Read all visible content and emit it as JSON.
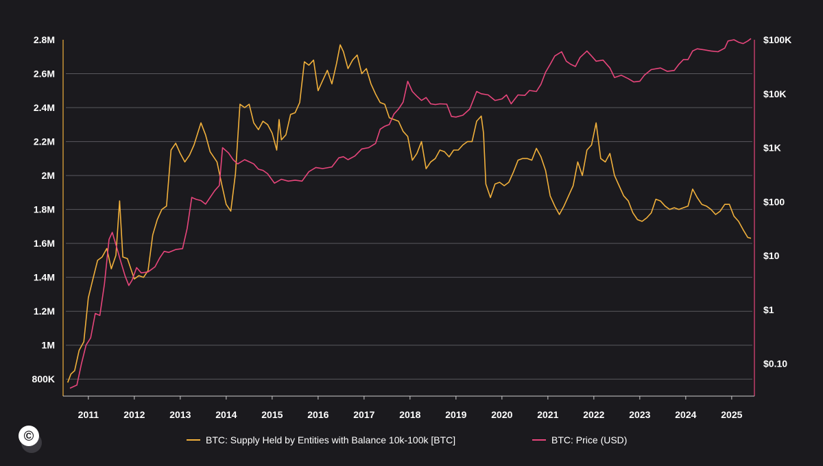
{
  "colors": {
    "background": "#1b1a1e",
    "supply_series": "#f2b13c",
    "price_series": "#e8467c",
    "gridline": "#5a595e",
    "text": "#ffffff"
  },
  "logo": {
    "glyph": "©",
    "icon": "copyright-logo-icon"
  },
  "chart_data": {
    "type": "line",
    "grid": true,
    "legend_placement": "bottom",
    "x_axis": {
      "ticks": [
        "2011",
        "2012",
        "2013",
        "2014",
        "2015",
        "2016",
        "2017",
        "2018",
        "2019",
        "2020",
        "2021",
        "2022",
        "2023",
        "2024",
        "2025"
      ],
      "range": [
        2010.45,
        2025.45
      ]
    },
    "y_left": {
      "ticks": [
        800000,
        1000000,
        1200000,
        1400000,
        1600000,
        1800000,
        2000000,
        2200000,
        2400000,
        2600000,
        2800000
      ],
      "tick_labels": [
        "800K",
        "1M",
        "1.2M",
        "1.4M",
        "1.6M",
        "1.8M",
        "2M",
        "2.2M",
        "2.4M",
        "2.6M",
        "2.8M"
      ],
      "range": [
        700000,
        2800000
      ]
    },
    "y_right": {
      "scale": "log",
      "ticks": [
        0.1,
        1,
        10,
        100,
        1000,
        10000,
        100000
      ],
      "tick_labels": [
        "$0.10",
        "$1",
        "$10",
        "$100",
        "$1K",
        "$10K",
        "$100K"
      ],
      "range": [
        0.025,
        100000
      ]
    },
    "series": [
      {
        "name": "BTC: Supply Held by Entities with Balance 10k-100k [BTC]",
        "axis": "left",
        "points": [
          [
            2010.55,
            780000
          ],
          [
            2010.62,
            830000
          ],
          [
            2010.7,
            850000
          ],
          [
            2010.8,
            970000
          ],
          [
            2010.9,
            1020000
          ],
          [
            2011.0,
            1280000
          ],
          [
            2011.1,
            1390000
          ],
          [
            2011.2,
            1500000
          ],
          [
            2011.3,
            1520000
          ],
          [
            2011.4,
            1570000
          ],
          [
            2011.5,
            1450000
          ],
          [
            2011.6,
            1530000
          ],
          [
            2011.68,
            1850000
          ],
          [
            2011.75,
            1520000
          ],
          [
            2011.85,
            1510000
          ],
          [
            2012.0,
            1390000
          ],
          [
            2012.1,
            1410000
          ],
          [
            2012.2,
            1400000
          ],
          [
            2012.3,
            1440000
          ],
          [
            2012.4,
            1650000
          ],
          [
            2012.5,
            1740000
          ],
          [
            2012.6,
            1800000
          ],
          [
            2012.7,
            1820000
          ],
          [
            2012.8,
            2150000
          ],
          [
            2012.9,
            2190000
          ],
          [
            2013.0,
            2130000
          ],
          [
            2013.1,
            2080000
          ],
          [
            2013.2,
            2120000
          ],
          [
            2013.3,
            2180000
          ],
          [
            2013.45,
            2310000
          ],
          [
            2013.55,
            2240000
          ],
          [
            2013.65,
            2140000
          ],
          [
            2013.8,
            2080000
          ],
          [
            2013.9,
            1950000
          ],
          [
            2014.0,
            1830000
          ],
          [
            2014.1,
            1790000
          ],
          [
            2014.2,
            2010000
          ],
          [
            2014.3,
            2420000
          ],
          [
            2014.4,
            2400000
          ],
          [
            2014.5,
            2420000
          ],
          [
            2014.6,
            2310000
          ],
          [
            2014.7,
            2270000
          ],
          [
            2014.8,
            2320000
          ],
          [
            2014.9,
            2300000
          ],
          [
            2015.0,
            2250000
          ],
          [
            2015.1,
            2150000
          ],
          [
            2015.15,
            2330000
          ],
          [
            2015.2,
            2210000
          ],
          [
            2015.3,
            2240000
          ],
          [
            2015.4,
            2360000
          ],
          [
            2015.5,
            2370000
          ],
          [
            2015.6,
            2430000
          ],
          [
            2015.7,
            2670000
          ],
          [
            2015.8,
            2650000
          ],
          [
            2015.9,
            2680000
          ],
          [
            2016.0,
            2500000
          ],
          [
            2016.1,
            2560000
          ],
          [
            2016.2,
            2620000
          ],
          [
            2016.3,
            2540000
          ],
          [
            2016.4,
            2660000
          ],
          [
            2016.48,
            2770000
          ],
          [
            2016.55,
            2730000
          ],
          [
            2016.65,
            2630000
          ],
          [
            2016.75,
            2680000
          ],
          [
            2016.85,
            2710000
          ],
          [
            2016.95,
            2600000
          ],
          [
            2017.05,
            2630000
          ],
          [
            2017.15,
            2540000
          ],
          [
            2017.25,
            2480000
          ],
          [
            2017.35,
            2430000
          ],
          [
            2017.45,
            2420000
          ],
          [
            2017.55,
            2340000
          ],
          [
            2017.65,
            2330000
          ],
          [
            2017.75,
            2320000
          ],
          [
            2017.85,
            2260000
          ],
          [
            2017.95,
            2230000
          ],
          [
            2018.05,
            2090000
          ],
          [
            2018.15,
            2130000
          ],
          [
            2018.25,
            2200000
          ],
          [
            2018.35,
            2040000
          ],
          [
            2018.45,
            2080000
          ],
          [
            2018.55,
            2100000
          ],
          [
            2018.65,
            2150000
          ],
          [
            2018.75,
            2140000
          ],
          [
            2018.85,
            2110000
          ],
          [
            2018.95,
            2150000
          ],
          [
            2019.05,
            2150000
          ],
          [
            2019.15,
            2180000
          ],
          [
            2019.25,
            2200000
          ],
          [
            2019.35,
            2200000
          ],
          [
            2019.45,
            2320000
          ],
          [
            2019.55,
            2350000
          ],
          [
            2019.6,
            2250000
          ],
          [
            2019.65,
            1950000
          ],
          [
            2019.75,
            1870000
          ],
          [
            2019.85,
            1950000
          ],
          [
            2019.95,
            1960000
          ],
          [
            2020.05,
            1940000
          ],
          [
            2020.15,
            1960000
          ],
          [
            2020.25,
            2020000
          ],
          [
            2020.35,
            2090000
          ],
          [
            2020.45,
            2100000
          ],
          [
            2020.55,
            2100000
          ],
          [
            2020.65,
            2090000
          ],
          [
            2020.75,
            2160000
          ],
          [
            2020.85,
            2110000
          ],
          [
            2020.95,
            2030000
          ],
          [
            2021.05,
            1880000
          ],
          [
            2021.15,
            1820000
          ],
          [
            2021.25,
            1770000
          ],
          [
            2021.35,
            1820000
          ],
          [
            2021.45,
            1880000
          ],
          [
            2021.55,
            1940000
          ],
          [
            2021.65,
            2080000
          ],
          [
            2021.75,
            2000000
          ],
          [
            2021.85,
            2150000
          ],
          [
            2021.95,
            2180000
          ],
          [
            2022.05,
            2310000
          ],
          [
            2022.15,
            2100000
          ],
          [
            2022.25,
            2080000
          ],
          [
            2022.35,
            2130000
          ],
          [
            2022.45,
            2000000
          ],
          [
            2022.55,
            1940000
          ],
          [
            2022.65,
            1880000
          ],
          [
            2022.75,
            1850000
          ],
          [
            2022.85,
            1780000
          ],
          [
            2022.95,
            1740000
          ],
          [
            2023.05,
            1730000
          ],
          [
            2023.15,
            1750000
          ],
          [
            2023.25,
            1780000
          ],
          [
            2023.35,
            1860000
          ],
          [
            2023.45,
            1850000
          ],
          [
            2023.55,
            1820000
          ],
          [
            2023.65,
            1800000
          ],
          [
            2023.75,
            1810000
          ],
          [
            2023.85,
            1800000
          ],
          [
            2023.95,
            1810000
          ],
          [
            2024.05,
            1820000
          ],
          [
            2024.15,
            1920000
          ],
          [
            2024.25,
            1870000
          ],
          [
            2024.35,
            1830000
          ],
          [
            2024.45,
            1820000
          ],
          [
            2024.55,
            1800000
          ],
          [
            2024.65,
            1770000
          ],
          [
            2024.75,
            1790000
          ],
          [
            2024.85,
            1830000
          ],
          [
            2024.95,
            1830000
          ],
          [
            2025.05,
            1760000
          ],
          [
            2025.15,
            1730000
          ],
          [
            2025.25,
            1680000
          ],
          [
            2025.35,
            1635000
          ],
          [
            2025.42,
            1630000
          ]
        ]
      },
      {
        "name": "BTC: Price (USD)",
        "axis": "right",
        "points": [
          [
            2010.6,
            0.035
          ],
          [
            2010.75,
            0.04
          ],
          [
            2010.85,
            0.1
          ],
          [
            2010.95,
            0.22
          ],
          [
            2011.05,
            0.3
          ],
          [
            2011.15,
            0.85
          ],
          [
            2011.25,
            0.78
          ],
          [
            2011.35,
            3.0
          ],
          [
            2011.45,
            20
          ],
          [
            2011.52,
            27
          ],
          [
            2011.6,
            16
          ],
          [
            2011.7,
            8
          ],
          [
            2011.8,
            4.2
          ],
          [
            2011.88,
            2.8
          ],
          [
            2011.95,
            3.5
          ],
          [
            2012.05,
            6
          ],
          [
            2012.15,
            4.8
          ],
          [
            2012.3,
            5.0
          ],
          [
            2012.45,
            6.2
          ],
          [
            2012.55,
            9
          ],
          [
            2012.65,
            12
          ],
          [
            2012.75,
            11.5
          ],
          [
            2012.9,
            13
          ],
          [
            2013.05,
            13.5
          ],
          [
            2013.15,
            32
          ],
          [
            2013.25,
            120
          ],
          [
            2013.35,
            110
          ],
          [
            2013.45,
            105
          ],
          [
            2013.55,
            90
          ],
          [
            2013.65,
            120
          ],
          [
            2013.75,
            160
          ],
          [
            2013.85,
            200
          ],
          [
            2013.92,
            1000
          ],
          [
            2014.05,
            800
          ],
          [
            2014.15,
            600
          ],
          [
            2014.25,
            500
          ],
          [
            2014.4,
            600
          ],
          [
            2014.5,
            550
          ],
          [
            2014.6,
            500
          ],
          [
            2014.7,
            400
          ],
          [
            2014.8,
            380
          ],
          [
            2014.9,
            330
          ],
          [
            2015.05,
            220
          ],
          [
            2015.2,
            260
          ],
          [
            2015.35,
            240
          ],
          [
            2015.5,
            250
          ],
          [
            2015.65,
            240
          ],
          [
            2015.8,
            360
          ],
          [
            2015.95,
            430
          ],
          [
            2016.1,
            410
          ],
          [
            2016.3,
            440
          ],
          [
            2016.45,
            650
          ],
          [
            2016.55,
            680
          ],
          [
            2016.65,
            600
          ],
          [
            2016.8,
            700
          ],
          [
            2016.95,
            950
          ],
          [
            2017.1,
            1000
          ],
          [
            2017.25,
            1200
          ],
          [
            2017.35,
            2200
          ],
          [
            2017.45,
            2500
          ],
          [
            2017.55,
            2700
          ],
          [
            2017.65,
            4200
          ],
          [
            2017.75,
            5200
          ],
          [
            2017.85,
            7000
          ],
          [
            2017.95,
            17000
          ],
          [
            2018.05,
            11000
          ],
          [
            2018.15,
            9000
          ],
          [
            2018.25,
            7500
          ],
          [
            2018.35,
            8500
          ],
          [
            2018.45,
            6500
          ],
          [
            2018.55,
            6300
          ],
          [
            2018.65,
            6500
          ],
          [
            2018.8,
            6400
          ],
          [
            2018.9,
            3800
          ],
          [
            2019.0,
            3700
          ],
          [
            2019.15,
            4000
          ],
          [
            2019.3,
            5200
          ],
          [
            2019.45,
            11000
          ],
          [
            2019.55,
            10000
          ],
          [
            2019.7,
            9500
          ],
          [
            2019.85,
            7500
          ],
          [
            2020.0,
            8000
          ],
          [
            2020.1,
            9500
          ],
          [
            2020.2,
            6500
          ],
          [
            2020.35,
            9500
          ],
          [
            2020.5,
            9300
          ],
          [
            2020.6,
            11500
          ],
          [
            2020.75,
            11000
          ],
          [
            2020.85,
            15000
          ],
          [
            2020.95,
            25000
          ],
          [
            2021.05,
            35000
          ],
          [
            2021.15,
            50000
          ],
          [
            2021.3,
            60000
          ],
          [
            2021.4,
            40000
          ],
          [
            2021.5,
            35000
          ],
          [
            2021.6,
            32000
          ],
          [
            2021.7,
            47000
          ],
          [
            2021.85,
            62000
          ],
          [
            2021.95,
            50000
          ],
          [
            2022.05,
            40000
          ],
          [
            2022.2,
            42000
          ],
          [
            2022.35,
            30000
          ],
          [
            2022.45,
            20000
          ],
          [
            2022.6,
            22000
          ],
          [
            2022.75,
            19000
          ],
          [
            2022.87,
            16500
          ],
          [
            2023.0,
            17000
          ],
          [
            2023.1,
            22000
          ],
          [
            2023.25,
            28000
          ],
          [
            2023.45,
            30000
          ],
          [
            2023.6,
            26000
          ],
          [
            2023.75,
            27000
          ],
          [
            2023.85,
            35000
          ],
          [
            2023.95,
            43000
          ],
          [
            2024.05,
            43000
          ],
          [
            2024.15,
            62000
          ],
          [
            2024.25,
            68000
          ],
          [
            2024.4,
            65000
          ],
          [
            2024.55,
            62000
          ],
          [
            2024.7,
            60000
          ],
          [
            2024.85,
            70000
          ],
          [
            2024.92,
            95000
          ],
          [
            2025.05,
            100000
          ],
          [
            2025.15,
            90000
          ],
          [
            2025.25,
            85000
          ],
          [
            2025.35,
            95000
          ],
          [
            2025.42,
            105000
          ]
        ]
      }
    ]
  }
}
